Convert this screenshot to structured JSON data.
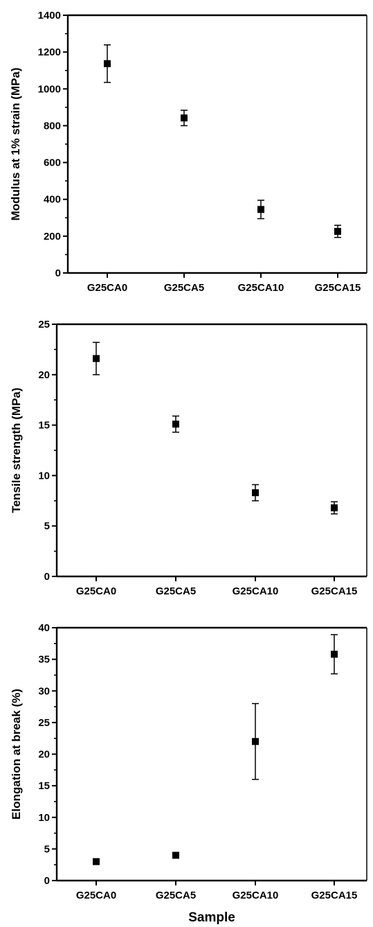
{
  "figure": {
    "xlabel": "Sample"
  },
  "chart_data": [
    {
      "type": "scatter",
      "title": "",
      "xlabel": "",
      "ylabel": "Modulus at 1% strain (MPa)",
      "categories": [
        "G25CA0",
        "G25CA5",
        "G25CA10",
        "G25CA15"
      ],
      "values": [
        1137,
        842,
        345,
        226
      ],
      "errors": [
        102,
        42,
        50,
        33
      ],
      "ylim": [
        0,
        1400
      ],
      "yticks": [
        0,
        200,
        400,
        600,
        800,
        1000,
        1200,
        1400
      ],
      "yticks_labels": [
        "0",
        "200",
        "400",
        "600",
        "800",
        "1000",
        "1200",
        "1400"
      ],
      "grid": false,
      "marker_color": "#000000"
    },
    {
      "type": "scatter",
      "title": "",
      "xlabel": "",
      "ylabel": "Tensile strength (MPa)",
      "categories": [
        "G25CA0",
        "G25CA5",
        "G25CA10",
        "G25CA15"
      ],
      "values": [
        21.6,
        15.1,
        8.3,
        6.8
      ],
      "errors": [
        1.6,
        0.8,
        0.8,
        0.6
      ],
      "ylim": [
        0,
        25
      ],
      "yticks": [
        0,
        5,
        10,
        15,
        20,
        25
      ],
      "yticks_labels": [
        "0",
        "5",
        "10",
        "15",
        "20",
        "25"
      ],
      "grid": false,
      "marker_color": "#000000"
    },
    {
      "type": "scatter",
      "title": "",
      "xlabel": "Sample",
      "ylabel": "Elongation at break (%)",
      "categories": [
        "G25CA0",
        "G25CA5",
        "G25CA10",
        "G25CA15"
      ],
      "values": [
        3,
        4,
        22,
        35.8
      ],
      "errors": [
        0.4,
        0.4,
        6,
        3.1
      ],
      "ylim": [
        0,
        40
      ],
      "yticks": [
        0,
        5,
        10,
        15,
        20,
        25,
        30,
        35,
        40
      ],
      "yticks_labels": [
        "0",
        "5",
        "10",
        "15",
        "20",
        "25",
        "30",
        "35",
        "40"
      ],
      "grid": false,
      "marker_color": "#000000"
    }
  ]
}
